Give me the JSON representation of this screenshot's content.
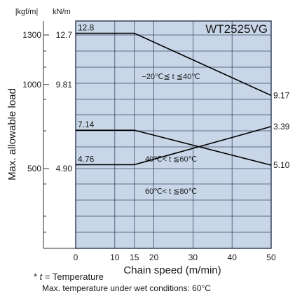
{
  "chart_data": {
    "type": "line",
    "title": "WT2525VG",
    "xlabel": "Chain speed (m/min)",
    "ylabel": "Max. allowable load",
    "y_units": [
      "kgf/m",
      "kN/m"
    ],
    "xlim": [
      0,
      50
    ],
    "x_ticks": [
      0,
      10,
      15,
      20,
      30,
      40,
      50
    ],
    "kgf_ticks": [
      {
        "label": "1300",
        "value": 12.7
      },
      {
        "label": "1000",
        "value": 9.81
      },
      {
        "label": "500",
        "value": 4.9
      }
    ],
    "kN_ticks": [
      {
        "label": "12.7",
        "value": 12.7
      },
      {
        "label": "9.81",
        "value": 9.81
      },
      {
        "label": "4.90",
        "value": 4.9
      }
    ],
    "series": [
      {
        "name": "−20℃≦ t ≦40℃",
        "x": [
          0,
          15,
          50
        ],
        "y": [
          12.8,
          12.8,
          9.17
        ],
        "start_label": "12.8",
        "end_label": "9.17"
      },
      {
        "name": "40℃< t ≦60℃",
        "x": [
          0,
          15,
          50
        ],
        "y": [
          7.14,
          7.14,
          5.1
        ],
        "start_label": "7.14",
        "end_label": "5.10"
      },
      {
        "name": "60℃< t ≦80℃",
        "x": [
          0,
          15,
          50
        ],
        "y": [
          4.76,
          4.76,
          3.39
        ],
        "start_label": "4.76",
        "end_label": "3.39"
      }
    ],
    "footnote_mark": "*",
    "footnote_var": "t",
    "footnote_rest": " = Temperature",
    "footnote2": "Max. temperature under wet conditions: 60°C",
    "colors": {
      "plot_bg": "#c8d6e8",
      "grid": "#3b4a66",
      "line": "#000000"
    }
  }
}
